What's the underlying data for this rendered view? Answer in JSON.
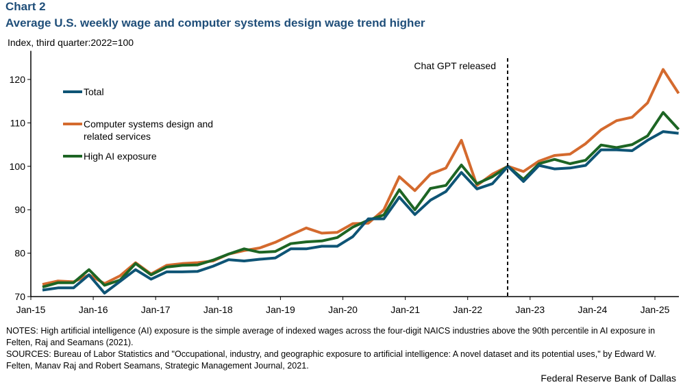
{
  "header": {
    "chart_label": "Chart 2",
    "title": "Average U.S. weekly wage and computer systems design wage trend higher",
    "unit": "Index, third quarter:2022=100"
  },
  "chart_data": {
    "type": "line",
    "title": "Average U.S. weekly wage and computer systems design wage trend higher",
    "ylabel": "Index, third quarter:2022=100",
    "ylim": [
      70,
      125
    ],
    "yticks": [
      "70",
      "80",
      "90",
      "100",
      "110",
      "120"
    ],
    "xticks": [
      "Jan-15",
      "Jan-16",
      "Jan-17",
      "Jan-18",
      "Jan-19",
      "Jan-20",
      "Jan-21",
      "Jan-22",
      "Jan-23",
      "Jan-24",
      "Jan-25"
    ],
    "x_frequency": "quarterly, 2015 Q1 to 2025 Q2",
    "legend_placement": "top-left",
    "annotation": {
      "label": "Chat GPT released",
      "at": "2022 Q3",
      "style": "dashed vertical line"
    },
    "series": [
      {
        "name": "Total",
        "color": "#0e5475",
        "values": [
          71.5,
          72.0,
          72.0,
          75.0,
          70.8,
          73.5,
          76.2,
          74.0,
          75.7,
          75.7,
          75.8,
          77.0,
          78.5,
          78.2,
          78.6,
          78.9,
          81.0,
          81.0,
          81.6,
          81.6,
          83.8,
          87.9,
          87.9,
          92.9,
          88.9,
          92.2,
          94.2,
          98.6,
          94.8,
          96.0,
          100,
          96.5,
          100.2,
          99.4,
          99.6,
          100.2,
          103.8,
          103.8,
          103.6,
          106.0,
          108.0,
          107.6
        ]
      },
      {
        "name": "Computer systems design and related services",
        "color": "#d46a2e",
        "values": [
          72.8,
          73.6,
          73.4,
          75.0,
          73.0,
          74.8,
          77.8,
          75.2,
          77.2,
          77.6,
          77.8,
          78.2,
          79.8,
          80.6,
          81.2,
          82.5,
          84.2,
          85.8,
          84.6,
          84.8,
          86.8,
          86.9,
          90.0,
          97.6,
          94.4,
          98.2,
          99.6,
          106.0,
          95.6,
          98.2,
          100,
          98.8,
          101.2,
          102.5,
          102.8,
          105.2,
          108.4,
          110.5,
          111.3,
          114.6,
          122.3,
          116.8
        ]
      },
      {
        "name": "High AI exposure",
        "color": "#1d6524",
        "values": [
          72.2,
          73.2,
          73.2,
          76.2,
          72.6,
          73.8,
          77.6,
          75.0,
          76.8,
          77.2,
          77.3,
          78.4,
          79.8,
          81.0,
          80.2,
          80.4,
          82.2,
          82.6,
          82.8,
          83.6,
          86.0,
          87.6,
          88.8,
          94.6,
          90.0,
          94.9,
          95.6,
          100.3,
          96.0,
          97.6,
          100,
          97.0,
          100.6,
          101.6,
          100.6,
          101.4,
          104.9,
          104.3,
          105.0,
          107.0,
          112.4,
          108.5
        ]
      }
    ]
  },
  "legend": [
    "Total",
    "Computer systems design and",
    "related services",
    "High AI exposure"
  ],
  "notes": "NOTES: High artificial intelligence (AI) exposure is the simple average of indexed wages across the four-digit NAICS industries above the 90th percentile in AI exposure in Felten, Raj and Seamans (2021).",
  "sources": "SOURCES: Bureau of Labor Statistics and \"Occupational, industry, and geographic exposure to artificial intelligence: A novel dataset and its potential uses,\" by Edward W. Felten, Manav Raj and Robert Seamans, Strategic Management Journal, 2021.",
  "footer": "Federal Reserve Bank of Dallas"
}
